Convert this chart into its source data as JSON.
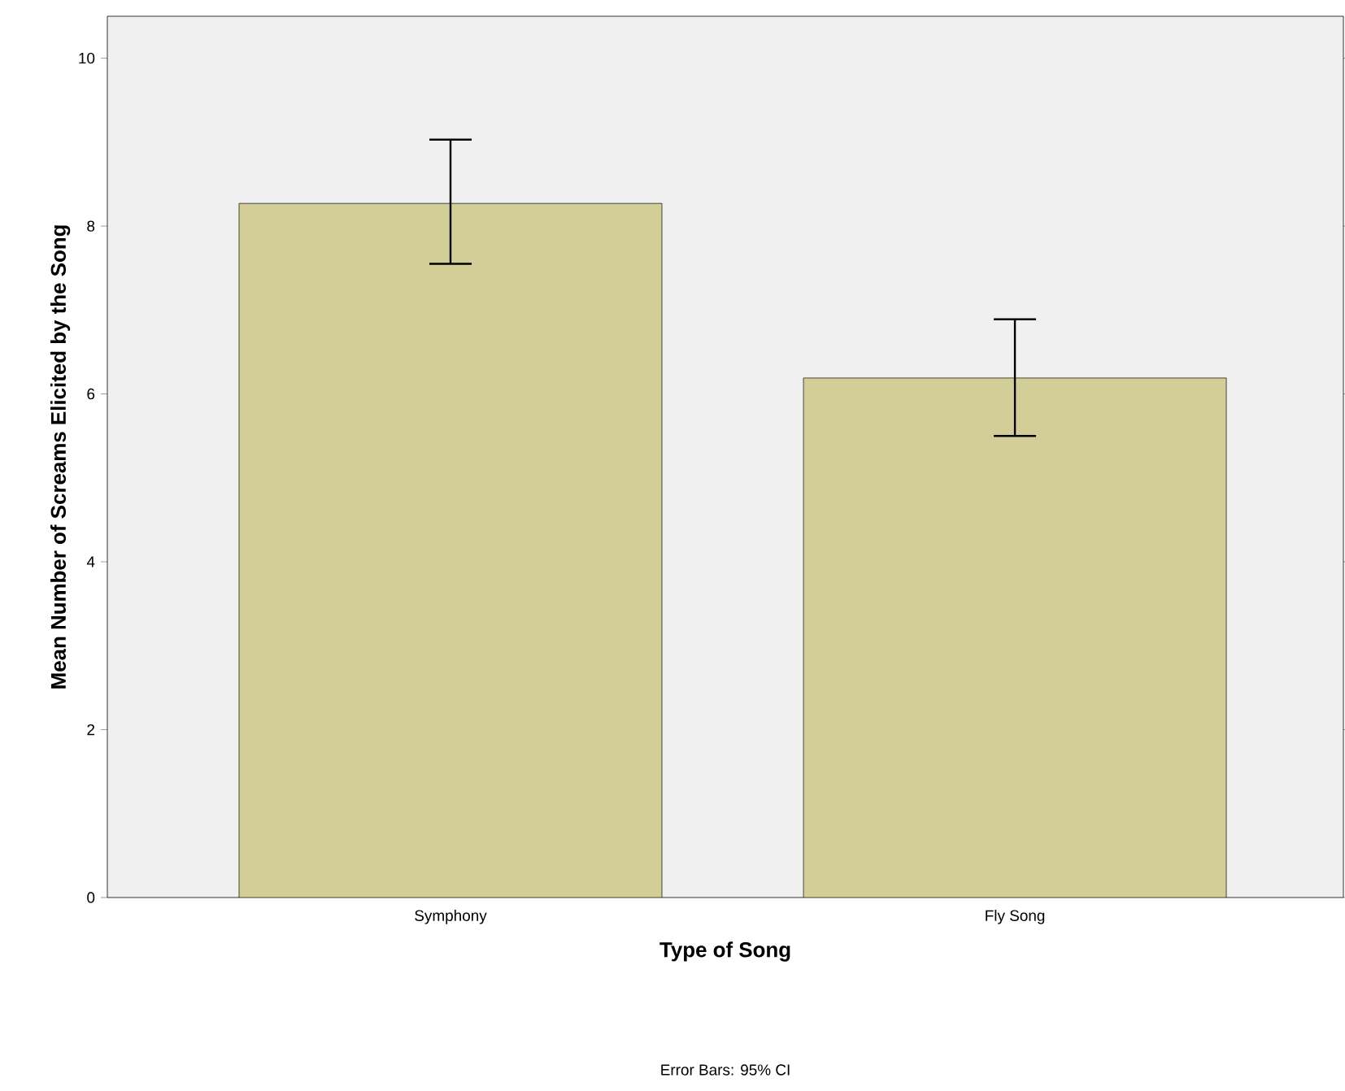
{
  "chart_data": {
    "type": "bar",
    "xlabel": "Type of Song",
    "ylabel": "Mean Number of Screams Elicited by the Song",
    "categories": [
      "Symphony",
      "Fly Song"
    ],
    "values": [
      8.27,
      6.19
    ],
    "errors": [
      [
        7.55,
        9.03
      ],
      [
        5.5,
        6.89
      ]
    ],
    "color": "#d3cd97",
    "ylim": [
      0,
      10.5
    ],
    "yticks": [
      0,
      2,
      4,
      6,
      8,
      10
    ],
    "annotations": [
      "Error Bars: 95% CI"
    ]
  }
}
